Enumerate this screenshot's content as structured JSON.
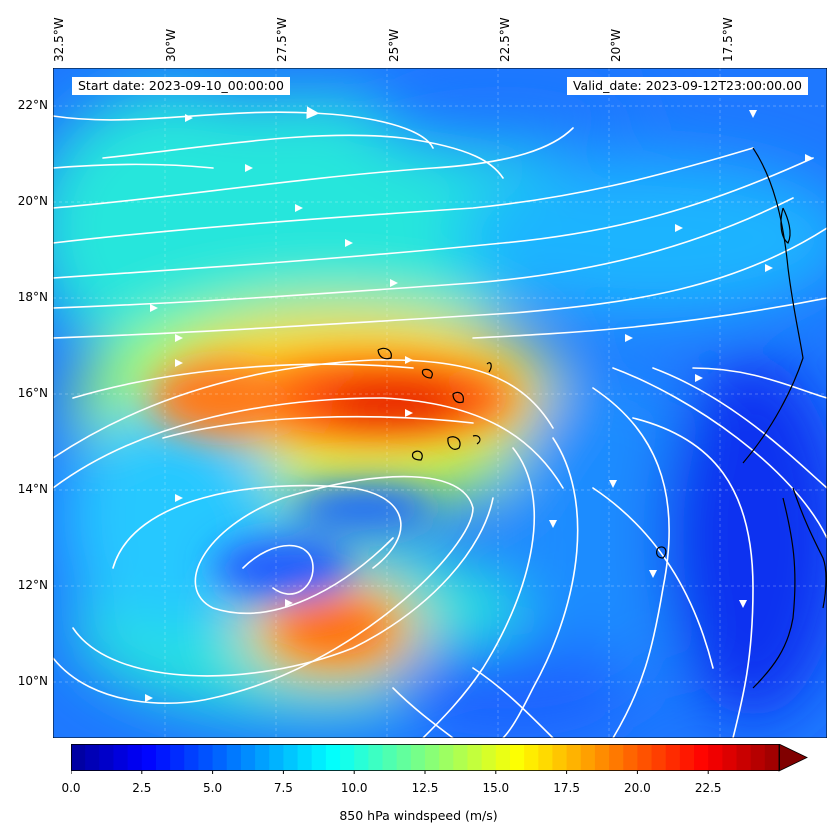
{
  "map": {
    "start_date": "Start date: 2023-09-10_00:00:00",
    "valid_date": "Valid_date: 2023-09-12T23:00:00.00",
    "longitude_labels": [
      "32.5°W",
      "30°W",
      "27.5°W",
      "25°W",
      "22.5°W",
      "20°W",
      "17.5°W"
    ],
    "latitude_labels": [
      "22°N",
      "20°N",
      "18°N",
      "16°N",
      "14°N",
      "12°N",
      "10°N"
    ],
    "extent": {
      "lon_west": -32.5,
      "lon_east": -15.2,
      "lat_south": 8.9,
      "lat_north": 22.8
    },
    "gridlines": "dashed"
  },
  "colorbar": {
    "label": "850 hPa windspeed (m/s)",
    "tick_labels": [
      "0.0",
      "2.5",
      "5.0",
      "7.5",
      "10.0",
      "12.5",
      "15.0",
      "17.5",
      "20.0",
      "22.5"
    ],
    "min": 0,
    "max": 25,
    "colormap": "jet",
    "extend": "max"
  },
  "wind_field": {
    "variable": "850 hPa windspeed",
    "units": "m/s",
    "features": [
      {
        "name": "jet core north",
        "lon": -26.0,
        "lat": 16.0,
        "speed": 22
      },
      {
        "name": "jet core south",
        "lon": -26.5,
        "lat": 11.3,
        "speed": 19
      },
      {
        "name": "cyclone center",
        "lon": -28.2,
        "lat": 12.2,
        "speed": 5
      },
      {
        "name": "calm east",
        "lon": -18.5,
        "lat": 12.0,
        "speed": 3
      }
    ],
    "streamline_color": "#ffffff",
    "coastline_color": "#000000"
  }
}
